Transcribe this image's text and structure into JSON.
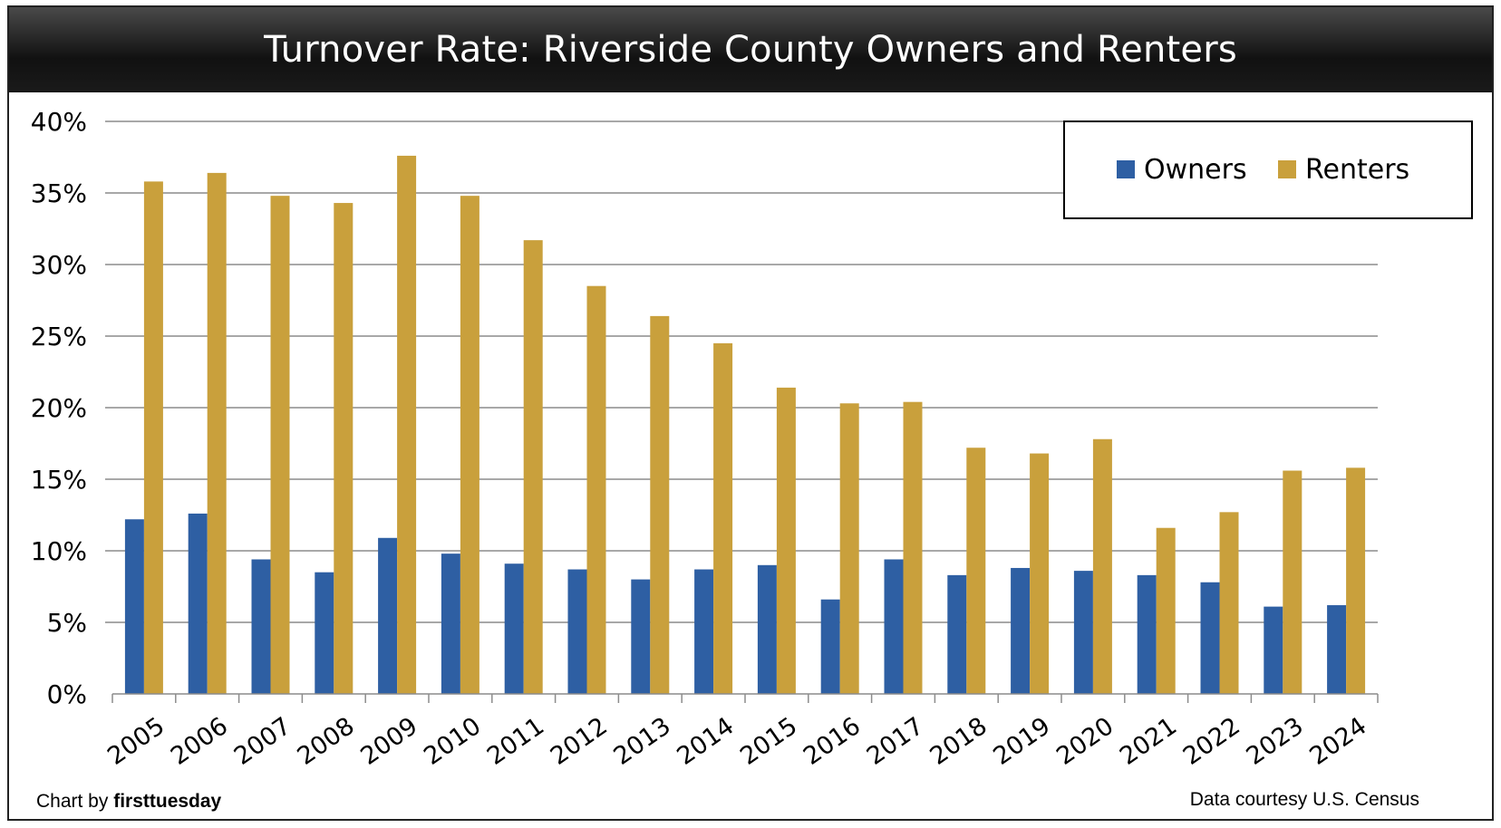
{
  "chart_data": {
    "type": "bar",
    "title": "Turnover Rate: Riverside County Owners and Renters",
    "categories": [
      "2005",
      "2006",
      "2007",
      "2008",
      "2009",
      "2010",
      "2011",
      "2012",
      "2013",
      "2014",
      "2015",
      "2016",
      "2017",
      "2018",
      "2019",
      "2020",
      "2021",
      "2022",
      "2023",
      "2024"
    ],
    "series": [
      {
        "name": "Owners",
        "color": "#2E5FA3",
        "values": [
          12.2,
          12.6,
          9.4,
          8.5,
          10.9,
          9.8,
          9.1,
          8.7,
          8.0,
          8.7,
          9.0,
          6.6,
          9.4,
          8.3,
          8.8,
          8.6,
          8.3,
          7.8,
          6.1,
          6.2
        ]
      },
      {
        "name": "Renters",
        "color": "#C9A03C",
        "values": [
          35.8,
          36.4,
          34.8,
          34.3,
          37.6,
          34.8,
          31.7,
          28.5,
          26.4,
          24.5,
          21.4,
          20.3,
          20.4,
          17.2,
          16.8,
          17.8,
          11.6,
          12.7,
          15.6,
          15.8
        ]
      }
    ],
    "ylim": [
      0,
      40
    ],
    "yticks": [
      0,
      5,
      10,
      15,
      20,
      25,
      30,
      35,
      40
    ],
    "ytick_labels": [
      "0%",
      "5%",
      "10%",
      "15%",
      "20%",
      "25%",
      "30%",
      "35%",
      "40%"
    ],
    "xlabel": "",
    "ylabel": "",
    "grid": true,
    "legend_position": "top-right"
  },
  "footer": {
    "credit_prefix": "Chart by ",
    "credit_brand": "firsttuesday",
    "source": "Data courtesy U.S. Census"
  }
}
